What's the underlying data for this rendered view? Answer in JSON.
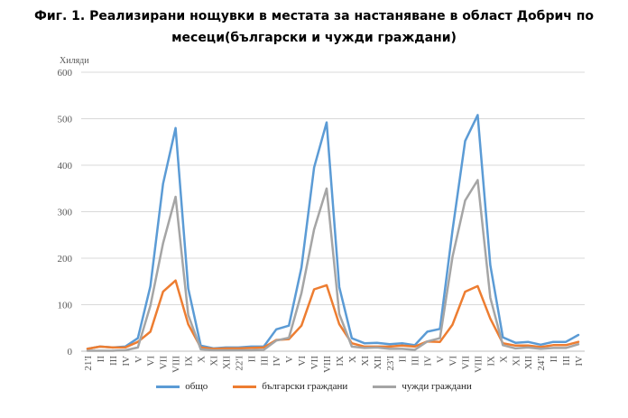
{
  "title_line1": "Фиг. 1. Реализирани нощувки в местата за настаняване в област Добрич по",
  "title_line2": "месеци(български и чужди граждани)",
  "unit_label": "Хиляди",
  "legend": [
    {
      "label": "общо",
      "color": "#5b9bd5"
    },
    {
      "label": "български граждани",
      "color": "#ed7d31"
    },
    {
      "label": "чужди граждани",
      "color": "#a5a5a5"
    }
  ],
  "chart_data": {
    "type": "line",
    "ylim": [
      0,
      600
    ],
    "yticks": [
      0,
      100,
      200,
      300,
      400,
      500,
      600
    ],
    "categories": [
      "21'I",
      "II",
      "III",
      "IV",
      "V",
      "VI",
      "VII",
      "VIII",
      "IX",
      "X",
      "XI",
      "XII",
      "22'I",
      "II",
      "III",
      "IV",
      "V",
      "VI",
      "VII",
      "VIII",
      "IX",
      "X",
      "XI",
      "XII",
      "23'I",
      "II",
      "III",
      "IV",
      "V",
      "VI",
      "VII",
      "VIII",
      "IX",
      "X",
      "XI",
      "XII",
      "24'I",
      "II",
      "III",
      "IV"
    ],
    "series": [
      {
        "name": "общо",
        "color": "#5b9bd5",
        "values": [
          5,
          10,
          8,
          10,
          28,
          140,
          360,
          480,
          135,
          12,
          6,
          8,
          8,
          10,
          10,
          47,
          55,
          180,
          395,
          492,
          138,
          28,
          17,
          18,
          15,
          17,
          13,
          42,
          48,
          260,
          452,
          508,
          185,
          30,
          18,
          20,
          14,
          20,
          20,
          35
        ]
      },
      {
        "name": "български граждани",
        "color": "#ed7d31",
        "values": [
          5,
          10,
          8,
          8,
          20,
          42,
          128,
          152,
          58,
          8,
          5,
          6,
          6,
          7,
          8,
          24,
          26,
          55,
          133,
          142,
          58,
          17,
          10,
          10,
          10,
          12,
          10,
          21,
          20,
          57,
          128,
          140,
          70,
          17,
          12,
          12,
          9,
          13,
          13,
          20
        ]
      },
      {
        "name": "чужди граждани",
        "color": "#a5a5a5",
        "values": [
          1,
          1,
          1,
          2,
          8,
          98,
          232,
          332,
          78,
          4,
          2,
          2,
          2,
          2,
          3,
          23,
          29,
          125,
          262,
          350,
          80,
          10,
          7,
          8,
          5,
          5,
          3,
          21,
          28,
          203,
          324,
          368,
          115,
          13,
          6,
          8,
          5,
          7,
          7,
          15
        ]
      }
    ]
  }
}
